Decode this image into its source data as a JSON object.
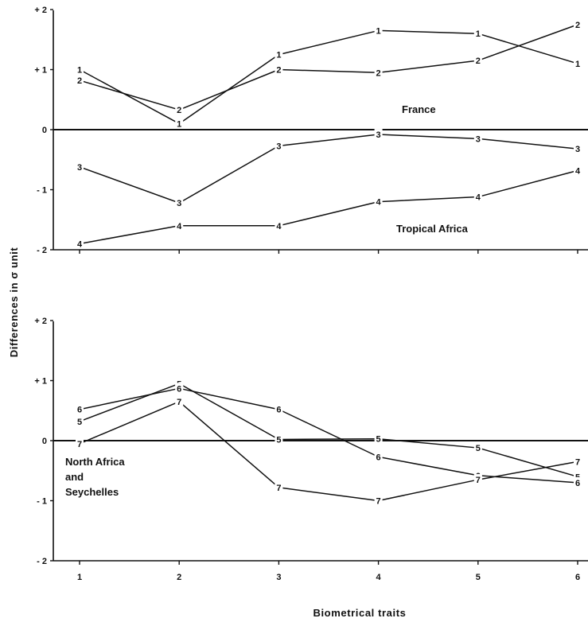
{
  "chart_data": [
    {
      "type": "line",
      "panel": "top",
      "x": [
        1,
        2,
        3,
        4,
        5,
        6
      ],
      "ylim": [
        -2,
        2
      ],
      "y_ticks": [
        -2,
        -1,
        0,
        1,
        2
      ],
      "y_tick_labels": [
        "- 2",
        "- 1",
        "0",
        "+ 1",
        "+ 2"
      ],
      "annotations": [
        "France",
        "Tropical Africa"
      ],
      "series": [
        {
          "name": "1",
          "values": [
            1.0,
            0.1,
            1.25,
            1.65,
            1.6,
            1.1
          ]
        },
        {
          "name": "2",
          "values": [
            0.82,
            0.33,
            1.0,
            0.95,
            1.15,
            1.75
          ]
        },
        {
          "name": "3",
          "values": [
            -0.62,
            -1.22,
            -0.27,
            -0.08,
            -0.15,
            -0.32
          ]
        },
        {
          "name": "4",
          "values": [
            -1.9,
            -1.6,
            -1.6,
            -1.2,
            -1.12,
            -0.68
          ]
        }
      ]
    },
    {
      "type": "line",
      "panel": "bottom",
      "x": [
        1,
        2,
        3,
        4,
        5,
        6
      ],
      "ylim": [
        -2,
        2
      ],
      "y_ticks": [
        -2,
        -1,
        0,
        1,
        2
      ],
      "y_tick_labels": [
        "- 2",
        "- 1",
        "0",
        "+ 1",
        "+ 2"
      ],
      "x_tick_labels": [
        "1",
        "2",
        "3",
        "4",
        "5",
        "6"
      ],
      "annotations": [
        "North Africa",
        "and",
        "Seychelles"
      ],
      "series": [
        {
          "name": "5",
          "values": [
            0.32,
            0.95,
            0.02,
            0.03,
            -0.12,
            -0.6
          ]
        },
        {
          "name": "6",
          "values": [
            0.52,
            0.87,
            0.52,
            -0.27,
            -0.58,
            -0.7
          ]
        },
        {
          "name": "7",
          "values": [
            -0.05,
            0.65,
            -0.78,
            -1.0,
            -0.65,
            -0.35
          ]
        }
      ]
    }
  ],
  "ylabel": "Differences in σ unit",
  "xlabel": "Biometrical traits"
}
